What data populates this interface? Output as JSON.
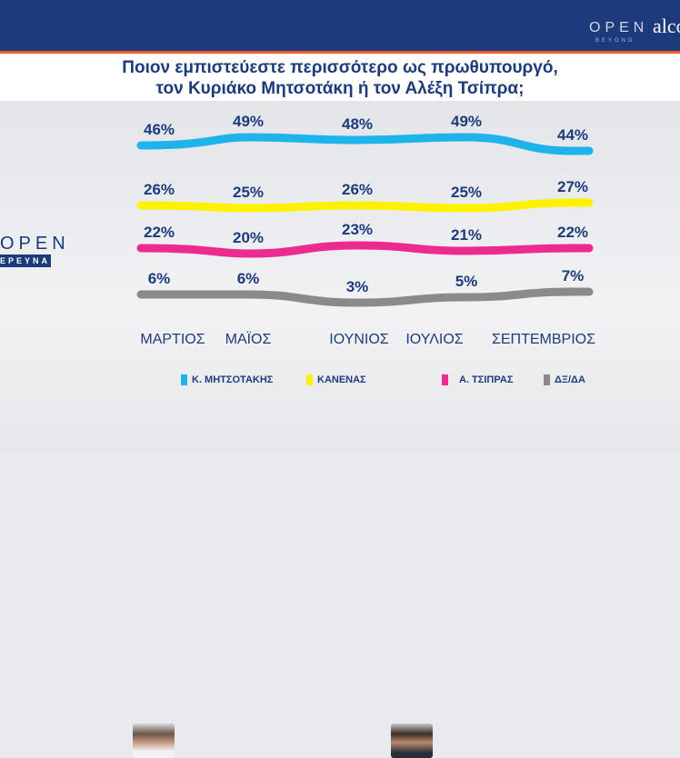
{
  "header": {
    "logo_open": "OPEN",
    "logo_beyond": "BEYOND",
    "logo_partner": "alco"
  },
  "side_logo": {
    "open": "OPEN",
    "ereuna": "ΕΡΕΥΝΑ"
  },
  "chart_data": {
    "type": "line",
    "title": "Ποιον εμπιστεύεστε περισσότερο ως πρωθυπουργό,",
    "subtitle": "τον Κυριάκο Μητσοτάκη ή τον Αλέξη Τσίπρα;",
    "categories": [
      "ΜΑΡΤΙΟΣ",
      "ΜΑΪΟΣ",
      "ΙΟΥΝΙΟΣ",
      "ΙΟΥΛΙΟΣ",
      "ΣΕΠΤΕΜΒΡΙΟΣ"
    ],
    "unit": "%",
    "grid": false,
    "legend_position": "bottom",
    "series": [
      {
        "name": "Κ. ΜΗΤΣΟΤΑΚΗΣ",
        "color": "#1fb3ec",
        "values": [
          46,
          49,
          48,
          49,
          44
        ]
      },
      {
        "name": "ΚΑΝΕΝΑΣ",
        "color": "#fff200",
        "values": [
          26,
          25,
          26,
          25,
          27
        ]
      },
      {
        "name": "Α. ΤΣΙΠΡΑΣ",
        "color": "#ec2a8f",
        "values": [
          22,
          20,
          23,
          21,
          22
        ]
      },
      {
        "name": "ΔΞ/ΔΑ",
        "color": "#8a8a8a",
        "values": [
          6,
          6,
          3,
          5,
          7
        ]
      }
    ]
  }
}
